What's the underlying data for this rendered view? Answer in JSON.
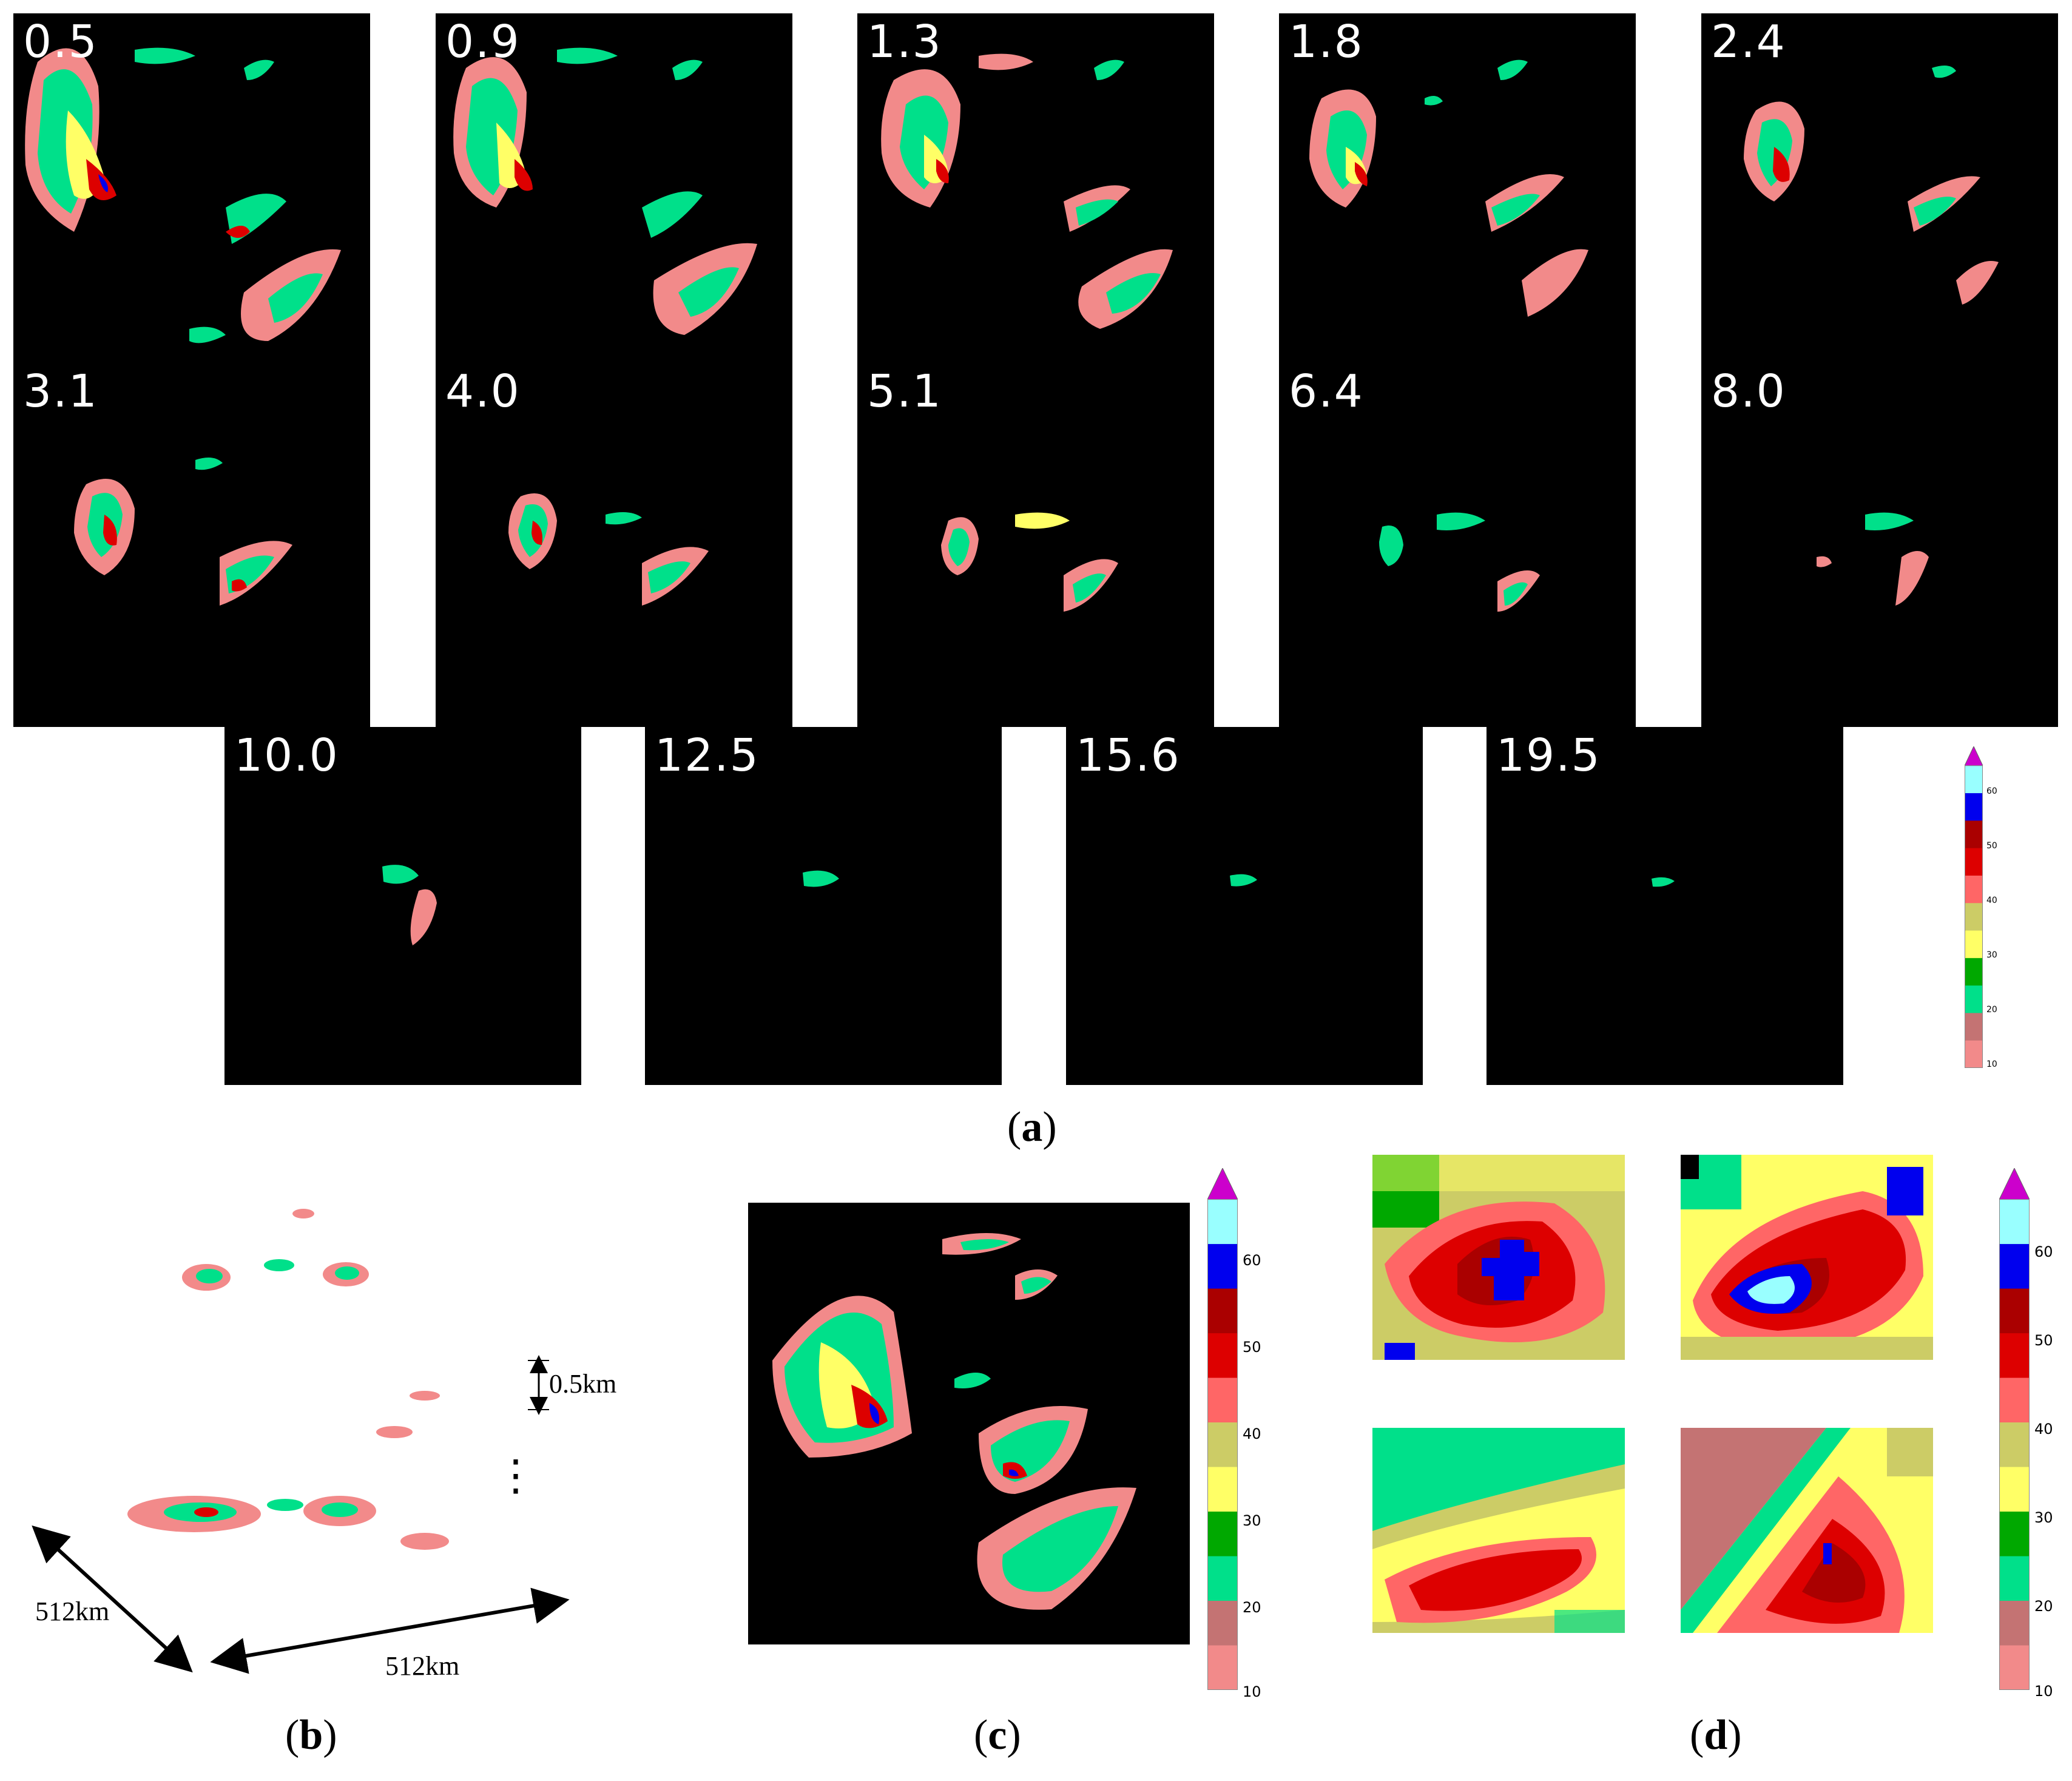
{
  "panel_a": {
    "caption_letter": "a",
    "height_labels": [
      "0.5",
      "0.9",
      "1.3",
      "1.8",
      "2.4",
      "3.1",
      "4.0",
      "5.1",
      "6.4",
      "8.0",
      "10.0",
      "12.5",
      "15.6",
      "19.5"
    ]
  },
  "panel_b": {
    "caption_letter": "b",
    "spacing_label": "0.5km",
    "width_label": "512km",
    "depth_label": "512km",
    "ellipsis": "⋮"
  },
  "panel_c": {
    "caption_letter": "c"
  },
  "panel_d": {
    "caption_letter": "d"
  },
  "colorbar": {
    "tick_labels": [
      "60",
      "50",
      "40",
      "30",
      "20",
      "10"
    ],
    "colors": [
      "#f28a8a",
      "#c47373",
      "#00e08a",
      "#00a800",
      "#ffff66",
      "#cccc66",
      "#ff6666",
      "#dd0000",
      "#aa0000",
      "#0000ee",
      "#99ffff"
    ],
    "arrow_color": "#cc00cc"
  }
}
